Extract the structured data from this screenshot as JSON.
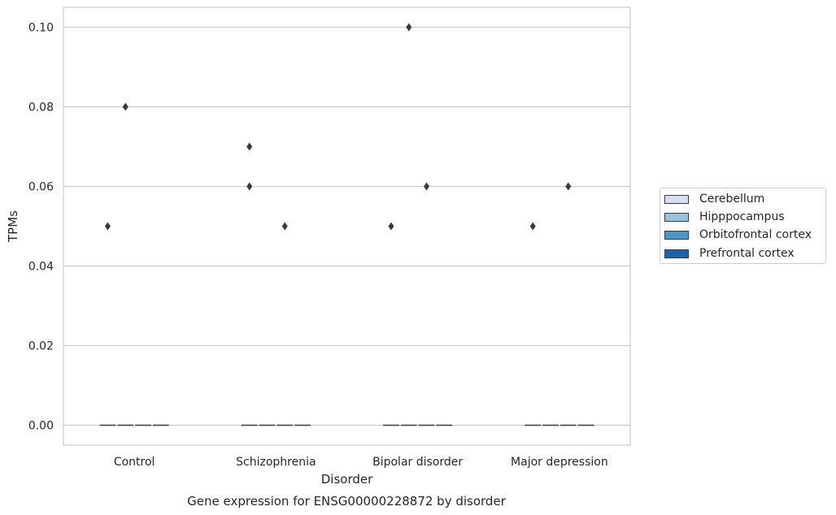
{
  "chart_data": {
    "type": "box",
    "title": "Gene expression for ENSG00000228872 by disorder",
    "xlabel": "Disorder",
    "ylabel": "TPMs",
    "categories": [
      "Control",
      "Schizophrenia",
      "Bipolar disorder",
      "Major depression"
    ],
    "ylim": [
      -0.005,
      0.105
    ],
    "yticks": [
      0.0,
      0.02,
      0.04,
      0.06,
      0.08,
      0.1
    ],
    "ytick_labels": [
      "0.00",
      "0.02",
      "0.04",
      "0.06",
      "0.08",
      "0.10"
    ],
    "grid": true,
    "legend_position": "right",
    "series": [
      {
        "name": "Cerebellum",
        "color": "#d0e1f2",
        "median": [
          0,
          0,
          0,
          0
        ],
        "outliers": [
          [
            0.05
          ],
          [
            0.07,
            0.06
          ],
          [
            0.05
          ],
          [
            0.05
          ]
        ]
      },
      {
        "name": "Hipppocampus",
        "color": "#94c4df",
        "median": [
          0,
          0,
          0,
          0
        ],
        "outliers": [
          [
            0.08
          ],
          [],
          [
            0.1
          ],
          []
        ]
      },
      {
        "name": "Orbitofrontal cortex",
        "color": "#4a98c9",
        "median": [
          0,
          0,
          0,
          0
        ],
        "outliers": [
          [],
          [
            0.05
          ],
          [
            0.06
          ],
          [
            0.06
          ]
        ]
      },
      {
        "name": "Prefrontal cortex",
        "color": "#1764ab",
        "median": [
          0,
          0,
          0,
          0
        ],
        "outliers": [
          [],
          [],
          [],
          []
        ]
      }
    ]
  }
}
